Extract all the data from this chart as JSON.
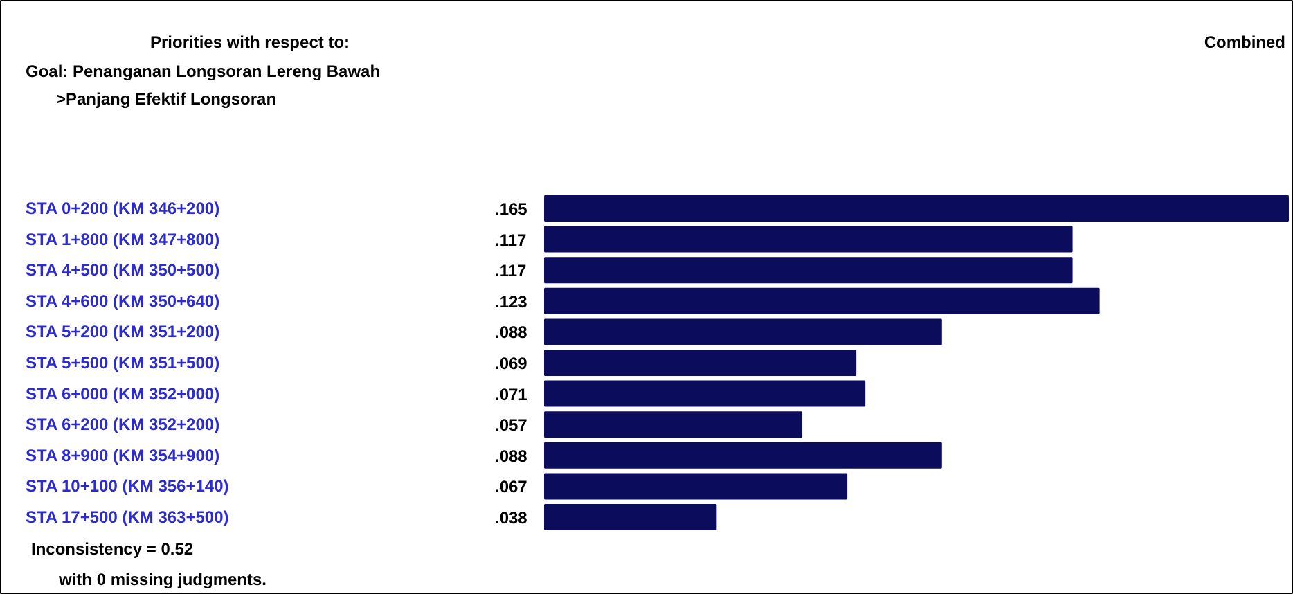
{
  "chart_data": {
    "type": "bar",
    "orientation": "horizontal",
    "title": "Priorities with respect to:",
    "subtitle": "Goal: Penanganan Longsoran Lereng Bawah",
    "categories": [
      "STA 0+200 (KM 346+200)",
      "STA 1+800 (KM 347+800)",
      "STA 4+500 (KM 350+500)",
      "STA 4+600 (KM 350+640)",
      "STA 5+200 (KM 351+200)",
      "STA 5+500 (KM 351+500)",
      "STA 6+000 (KM 352+000)",
      "STA 6+200 (KM 352+200)",
      "STA 8+900 (KM 354+900)",
      "STA 10+100 (KM 356+140)",
      "STA 17+500 (KM 363+500)"
    ],
    "values": [
      0.165,
      0.117,
      0.117,
      0.123,
      0.088,
      0.069,
      0.071,
      0.057,
      0.088,
      0.067,
      0.038
    ],
    "value_labels": [
      ".165",
      ".117",
      ".117",
      ".123",
      ".088",
      ".069",
      ".071",
      ".057",
      ".088",
      ".067",
      ".038"
    ],
    "color": "#0c0c5c",
    "annotations": [
      ">Panjang Efektif Longsoran",
      "Combined",
      "Inconsistency = 0.52",
      "with 0  missing judgments."
    ]
  }
}
